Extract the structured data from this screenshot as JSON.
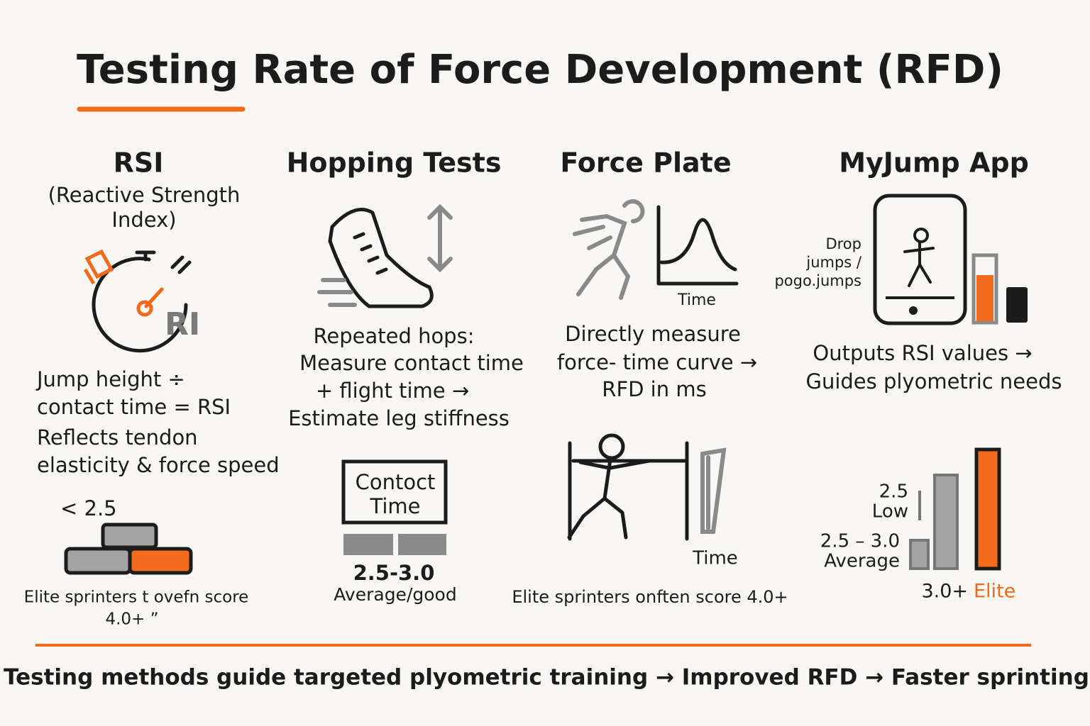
{
  "title": "Testing Rate of Force Development (RFD)",
  "columns": [
    {
      "heading": "RSI",
      "subheading": [
        "(Reactive Strength",
        "Index)"
      ],
      "icon_label": "RI",
      "description": [
        "Jump height ÷",
        "contact time = RSI",
        "Reflects tendon",
        "elasticity & force speed"
      ],
      "scale_label": "< 2.5",
      "note": [
        "Elite sprinters t ovefn score",
        "4.0+ ”"
      ]
    },
    {
      "heading": "Hopping Tests",
      "description": [
        "Repeated hops:",
        "Measure contact time",
        "+ flight time →",
        "Estimate leg stiffness"
      ],
      "box_label": [
        "Contoct",
        "Time"
      ],
      "range": "2.5-3.0",
      "range_label": "Average/good"
    },
    {
      "heading": "Force Plate",
      "graph_label": "Time",
      "description": [
        "Directly measure",
        "force- time curve →",
        "RFD in ms"
      ],
      "graph2_label": "Time",
      "note": "Elite sprinters onften score 4.0+"
    },
    {
      "heading": "MyJump App",
      "side_label": [
        "Drop",
        "jumps /",
        "pogo.jumps"
      ],
      "description": [
        "Outputs RSI values →",
        "Guides plyometric needs"
      ],
      "levels": [
        {
          "value": "2.5",
          "label": "Low"
        },
        {
          "value": "2.5 – 3.0",
          "label": "Average"
        },
        {
          "value": "3.0+",
          "label": "Elite"
        }
      ]
    }
  ],
  "footer": "Testing methods guide targeted plyometric training → Improved RFD → Faster sprinting"
}
